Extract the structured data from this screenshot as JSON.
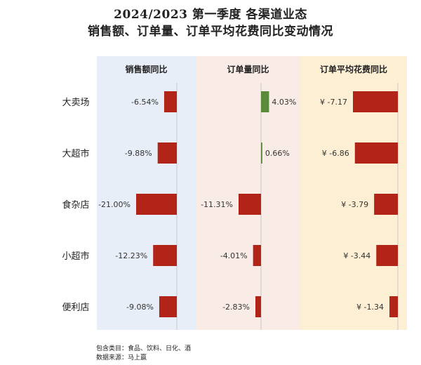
{
  "title": "2024/2023 第一季度 各渠道业态",
  "subtitle": "销售额、订单量、订单平均花费同比变动情况",
  "footer": {
    "categories_note": "包含类目：食品、饮料、日化、酒",
    "source_note": "数据来源：马上赢"
  },
  "colors": {
    "panel1_bg": "#e8eef7",
    "panel2_bg": "#f9ece6",
    "panel3_bg": "#fcefd3",
    "negative": "#b22418",
    "positive": "#5a8a3a",
    "axis": "#c8c8c8"
  },
  "chart_data": {
    "type": "bar",
    "orientation": "horizontal",
    "categories": [
      "大卖场",
      "大超市",
      "食杂店",
      "小超市",
      "便利店"
    ],
    "panels": [
      {
        "name": "销售额同比",
        "unit": "%",
        "values": [
          -6.54,
          -9.88,
          -21.0,
          -12.23,
          -9.08
        ],
        "labels": [
          "-6.54%",
          "-9.88%",
          "-21.00%",
          "-12.23%",
          "-9.08%"
        ]
      },
      {
        "name": "订单量同比",
        "unit": "%",
        "values": [
          4.03,
          0.66,
          -11.31,
          -4.01,
          -2.83
        ],
        "labels": [
          "4.03%",
          "0.66%",
          "-11.31%",
          "-4.01%",
          "-2.83%"
        ]
      },
      {
        "name": "订单平均花费同比",
        "unit": "¥",
        "values": [
          -7.17,
          -6.86,
          -3.79,
          -3.44,
          -1.34
        ],
        "labels": [
          "¥ -7.17",
          "¥ -6.86",
          "¥ -3.79",
          "¥ -3.44",
          "¥ -1.34"
        ]
      }
    ]
  }
}
